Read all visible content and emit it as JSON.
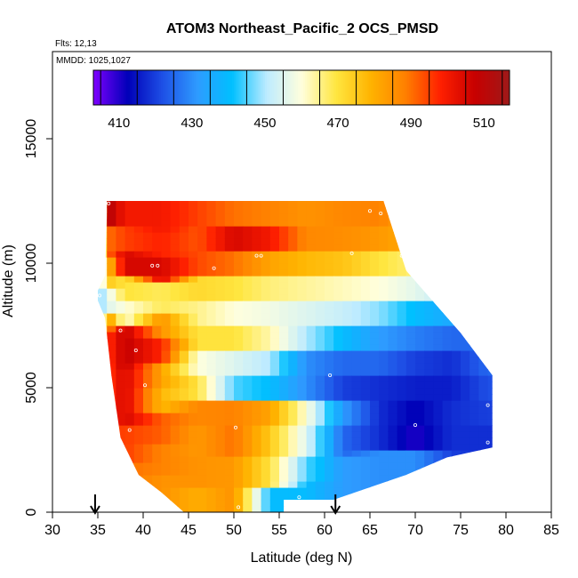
{
  "chart_data": {
    "type": "heatmap",
    "title": "ATOM3 Northeast_Pacific_2 OCS_PMSD",
    "subtitle_flights": "Flts: 12,13",
    "subtitle_mmdd": "MMDD: 1025,1027",
    "xlabel": "Latitude (deg N)",
    "ylabel": "Altitude (m)",
    "xlim": [
      30,
      85
    ],
    "ylim": [
      0,
      18500
    ],
    "x_ticks": [
      30,
      35,
      40,
      45,
      50,
      55,
      60,
      65,
      70,
      75,
      80,
      85
    ],
    "y_ticks": [
      0,
      5000,
      10000,
      15000
    ],
    "colorbar": {
      "range": [
        403,
        517
      ],
      "ticks": [
        410,
        430,
        450,
        470,
        490,
        510
      ],
      "colors": [
        "#7F00FF",
        "#0000B8",
        "#1E50E6",
        "#2E9BFF",
        "#00C0FF",
        "#BDEBFF",
        "#FFFFDD",
        "#FFE640",
        "#FFB300",
        "#FF8000",
        "#FF2000",
        "#C80000",
        "#9E1A1A"
      ]
    },
    "arrows_latitude": [
      34.7,
      61.2
    ],
    "grid": false,
    "series": [
      {
        "lat": 35.0,
        "alt": [
          [
            8700,
            8400,
            445
          ]
        ]
      },
      {
        "lat": 36.0,
        "alt": [
          [
            12500,
            12000,
            512
          ],
          [
            12000,
            10000,
            490
          ],
          [
            10000,
            9000,
            475
          ],
          [
            9000,
            8000,
            455
          ],
          [
            8000,
            7300,
            485
          ],
          [
            7300,
            6000,
            496
          ],
          [
            6000,
            5000,
            495
          ]
        ]
      },
      {
        "lat": 38.0,
        "alt": [
          [
            12300,
            11800,
            500
          ],
          [
            11800,
            10500,
            495
          ],
          [
            10500,
            9500,
            505
          ],
          [
            9500,
            8500,
            470
          ],
          [
            8500,
            7500,
            460
          ],
          [
            7500,
            6500,
            508
          ],
          [
            6500,
            3000,
            505
          ],
          [
            3000,
            2000,
            495
          ],
          [
            2000,
            1200,
            490
          ]
        ]
      },
      {
        "lat": 42.0,
        "alt": [
          [
            12300,
            11500,
            500
          ],
          [
            11500,
            10000,
            498
          ],
          [
            10000,
            9300,
            505
          ],
          [
            9300,
            8000,
            468
          ],
          [
            8000,
            7000,
            485
          ],
          [
            7000,
            6000,
            498
          ],
          [
            6000,
            5000,
            482
          ],
          [
            5000,
            4000,
            478
          ],
          [
            4000,
            3000,
            492
          ],
          [
            3000,
            1200,
            488
          ],
          [
            1200,
            500,
            485
          ]
        ]
      },
      {
        "lat": 46.0,
        "alt": [
          [
            12300,
            11500,
            495
          ],
          [
            11500,
            10500,
            493
          ],
          [
            10500,
            9500,
            494
          ],
          [
            9500,
            8500,
            472
          ],
          [
            8500,
            7500,
            465
          ],
          [
            7500,
            6500,
            470
          ],
          [
            6500,
            5500,
            460
          ],
          [
            5500,
            4500,
            470
          ],
          [
            4500,
            3500,
            487
          ],
          [
            3500,
            2500,
            484
          ],
          [
            2500,
            1000,
            485
          ],
          [
            1000,
            0,
            480
          ]
        ]
      },
      {
        "lat": 50.0,
        "alt": [
          [
            12300,
            11500,
            490
          ],
          [
            11500,
            10500,
            505
          ],
          [
            10500,
            9500,
            490
          ],
          [
            9500,
            8500,
            470
          ],
          [
            8500,
            7500,
            460
          ],
          [
            7500,
            6500,
            470
          ],
          [
            6500,
            5500,
            455
          ],
          [
            5500,
            4500,
            445
          ],
          [
            4500,
            3500,
            488
          ],
          [
            3500,
            2500,
            490
          ],
          [
            2500,
            1000,
            484
          ],
          [
            1000,
            0,
            485
          ]
        ]
      },
      {
        "lat": 54.0,
        "alt": [
          [
            12300,
            11500,
            488
          ],
          [
            11500,
            10500,
            500
          ],
          [
            10500,
            9500,
            482
          ],
          [
            9500,
            8500,
            466
          ],
          [
            8500,
            7500,
            458
          ],
          [
            7500,
            6500,
            463
          ],
          [
            6500,
            5500,
            450
          ],
          [
            5500,
            4500,
            440
          ],
          [
            4500,
            3500,
            482
          ],
          [
            3500,
            2500,
            475
          ],
          [
            2500,
            1000,
            470
          ],
          [
            1000,
            0,
            440
          ]
        ]
      },
      {
        "lat": 58.0,
        "alt": [
          [
            12300,
            11500,
            485
          ],
          [
            11500,
            10500,
            487
          ],
          [
            10500,
            9500,
            478
          ],
          [
            9500,
            8500,
            464
          ],
          [
            8500,
            7500,
            455
          ],
          [
            7500,
            6500,
            450
          ],
          [
            6500,
            5500,
            430
          ],
          [
            5500,
            4500,
            430
          ],
          [
            4500,
            3500,
            460
          ],
          [
            3500,
            2500,
            455
          ],
          [
            2500,
            1000,
            445
          ],
          [
            1000,
            500,
            440
          ]
        ]
      },
      {
        "lat": 62.0,
        "alt": [
          [
            12300,
            11500,
            487
          ],
          [
            11500,
            10500,
            486
          ],
          [
            10500,
            9500,
            476
          ],
          [
            9500,
            8500,
            462
          ],
          [
            8500,
            7500,
            452
          ],
          [
            7500,
            6500,
            440
          ],
          [
            6500,
            5500,
            425
          ],
          [
            5500,
            4500,
            420
          ],
          [
            4500,
            3500,
            432
          ],
          [
            3500,
            2500,
            425
          ],
          [
            2500,
            1000,
            432
          ]
        ]
      },
      {
        "lat": 66.0,
        "alt": [
          [
            12300,
            11500,
            488
          ],
          [
            11500,
            10500,
            484
          ],
          [
            10500,
            9500,
            470
          ],
          [
            9500,
            8500,
            460
          ],
          [
            8500,
            7500,
            448
          ],
          [
            7500,
            6500,
            432
          ],
          [
            6500,
            5500,
            425
          ],
          [
            5500,
            4500,
            418
          ],
          [
            4500,
            3500,
            418
          ],
          [
            3500,
            2500,
            418
          ],
          [
            2500,
            2000,
            430
          ]
        ]
      },
      {
        "lat": 70.0,
        "alt": [
          [
            11500,
            10500,
            480
          ],
          [
            10500,
            9500,
            466
          ],
          [
            9500,
            8500,
            456
          ],
          [
            8500,
            7500,
            440
          ],
          [
            7500,
            6500,
            428
          ],
          [
            6500,
            5500,
            420
          ],
          [
            5500,
            4500,
            416
          ],
          [
            4500,
            3500,
            412
          ],
          [
            3500,
            2500,
            410
          ],
          [
            2500,
            2000,
            430
          ]
        ]
      },
      {
        "lat": 74.0,
        "alt": [
          [
            9500,
            8500,
            450
          ],
          [
            8500,
            7500,
            435
          ],
          [
            7500,
            6500,
            425
          ],
          [
            6500,
            5500,
            418
          ],
          [
            5500,
            4500,
            416
          ],
          [
            4500,
            3500,
            418
          ],
          [
            3500,
            2500,
            418
          ],
          [
            2500,
            2000,
            420
          ]
        ]
      },
      {
        "lat": 78.0,
        "alt": [
          [
            6500,
            5500,
            425
          ],
          [
            5500,
            4500,
            422
          ],
          [
            4500,
            3500,
            420
          ],
          [
            3500,
            2500,
            418
          ]
        ]
      }
    ]
  }
}
